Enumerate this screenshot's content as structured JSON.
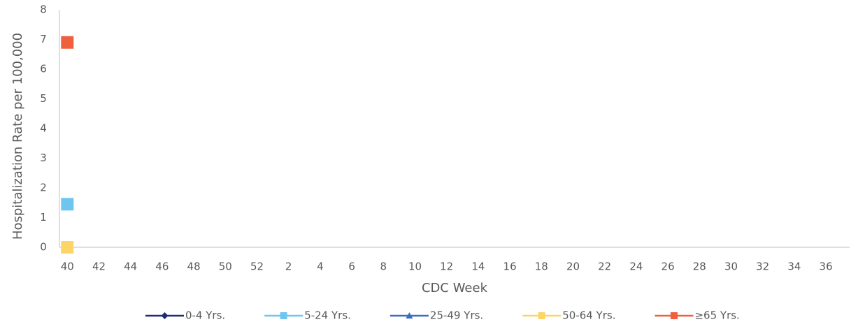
{
  "chart_data": {
    "type": "line",
    "y_label": "Hospitalization Rate per 100,000",
    "x_label": "CDC Week",
    "categories": [
      "40",
      null,
      "42",
      null,
      "44",
      null,
      "46",
      null,
      "48",
      null,
      "50",
      null,
      "52",
      null,
      "2",
      null,
      "4",
      null,
      "6",
      null,
      "8",
      null,
      "10",
      null,
      "12",
      null,
      "14",
      null,
      "16",
      null,
      "18",
      null,
      "20",
      null,
      "22",
      null,
      "24",
      null,
      "26",
      null,
      "28",
      null,
      "30",
      null,
      "32",
      null,
      "34",
      null,
      "36",
      null
    ],
    "series": [
      {
        "name": "0-4 Yrs.",
        "color": "#1f2d6e",
        "marker": "diamond",
        "values": [
          0,
          null,
          null,
          null,
          null,
          null,
          null,
          null,
          null,
          null,
          null,
          null,
          null,
          null,
          null,
          null,
          null,
          null,
          null,
          null,
          null,
          null,
          null,
          null,
          null,
          null,
          null,
          null,
          null,
          null,
          null,
          null,
          null,
          null,
          null,
          null,
          null,
          null,
          null,
          null,
          null,
          null,
          null,
          null,
          null,
          null,
          null,
          null,
          null,
          null
        ]
      },
      {
        "name": "5-24 Yrs.",
        "color": "#6ec6f0",
        "marker": "square",
        "values": [
          1.45,
          null,
          null,
          null,
          null,
          null,
          null,
          null,
          null,
          null,
          null,
          null,
          null,
          null,
          null,
          null,
          null,
          null,
          null,
          null,
          null,
          null,
          null,
          null,
          null,
          null,
          null,
          null,
          null,
          null,
          null,
          null,
          null,
          null,
          null,
          null,
          null,
          null,
          null,
          null,
          null,
          null,
          null,
          null,
          null,
          null,
          null,
          null,
          null,
          null
        ]
      },
      {
        "name": "25-49 Yrs.",
        "color": "#3a6cc0",
        "marker": "triangle",
        "values": [
          0,
          null,
          null,
          null,
          null,
          null,
          null,
          null,
          null,
          null,
          null,
          null,
          null,
          null,
          null,
          null,
          null,
          null,
          null,
          null,
          null,
          null,
          null,
          null,
          null,
          null,
          null,
          null,
          null,
          null,
          null,
          null,
          null,
          null,
          null,
          null,
          null,
          null,
          null,
          null,
          null,
          null,
          null,
          null,
          null,
          null,
          null,
          null,
          null,
          null
        ]
      },
      {
        "name": "50-64 Yrs.",
        "color": "#fdd567",
        "marker": "square",
        "values": [
          0,
          null,
          null,
          null,
          null,
          null,
          null,
          null,
          null,
          null,
          null,
          null,
          null,
          null,
          null,
          null,
          null,
          null,
          null,
          null,
          null,
          null,
          null,
          null,
          null,
          null,
          null,
          null,
          null,
          null,
          null,
          null,
          null,
          null,
          null,
          null,
          null,
          null,
          null,
          null,
          null,
          null,
          null,
          null,
          null,
          null,
          null,
          null,
          null,
          null
        ]
      },
      {
        "name": "≥65 Yrs.",
        "color": "#f0603c",
        "marker": "square",
        "values": [
          6.9,
          null,
          null,
          null,
          null,
          null,
          null,
          null,
          null,
          null,
          null,
          null,
          null,
          null,
          null,
          null,
          null,
          null,
          null,
          null,
          null,
          null,
          null,
          null,
          null,
          null,
          null,
          null,
          null,
          null,
          null,
          null,
          null,
          null,
          null,
          null,
          null,
          null,
          null,
          null,
          null,
          null,
          null,
          null,
          null,
          null,
          null,
          null,
          null,
          null
        ]
      }
    ],
    "ylim": [
      0,
      8
    ],
    "yticks": [
      0,
      1,
      2,
      3,
      4,
      5,
      6,
      7,
      8
    ],
    "grid": false,
    "legend": "bottom"
  }
}
